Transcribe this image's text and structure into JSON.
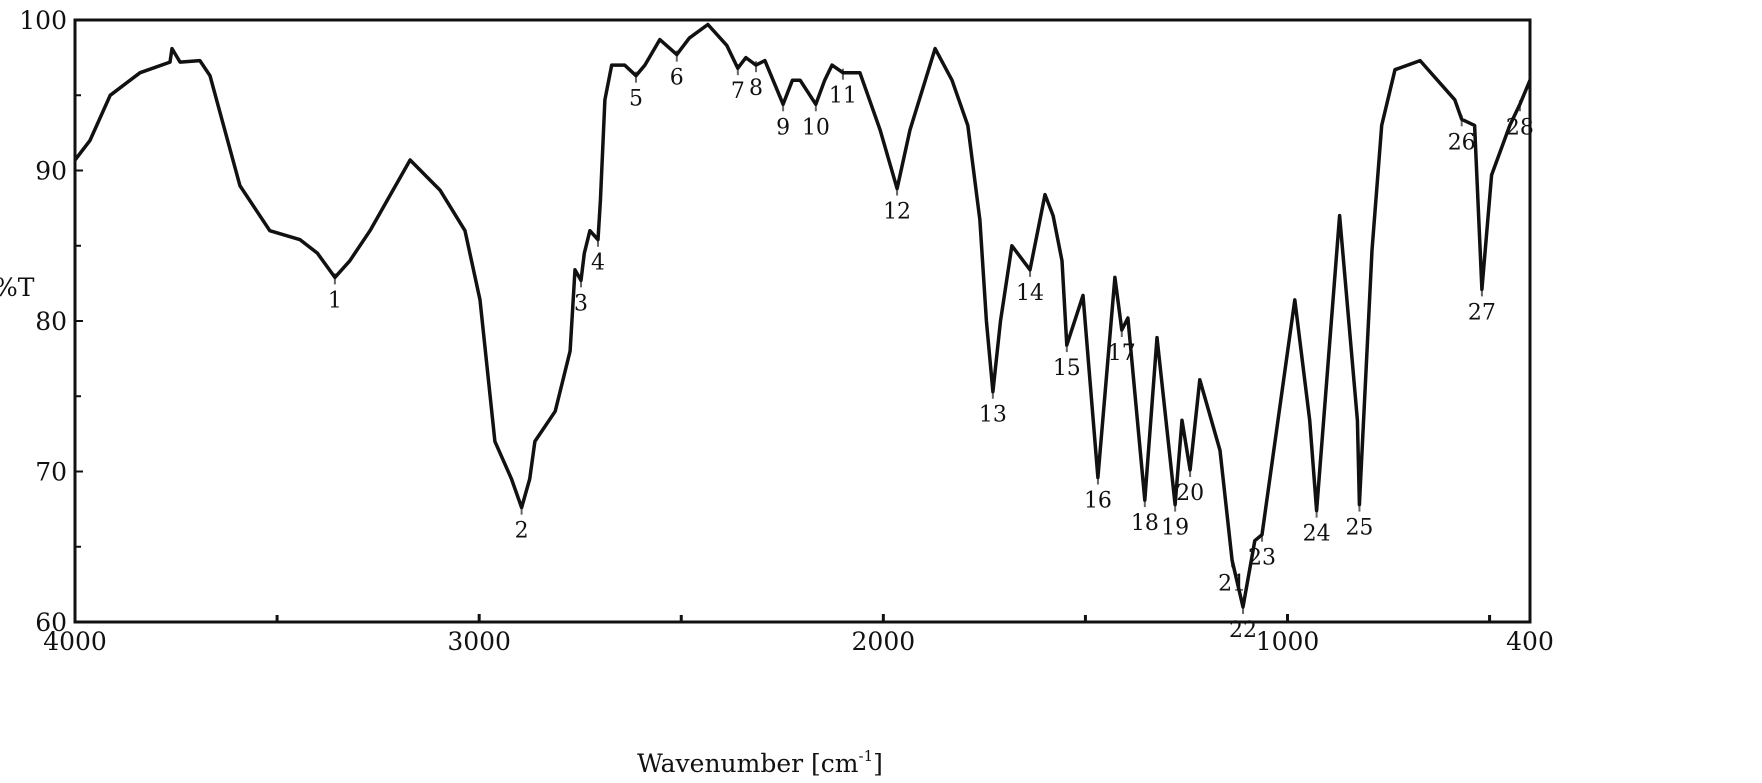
{
  "chart_data": {
    "type": "line",
    "title": "",
    "xlabel": "Wavenumber [cm",
    "xlabel_sup": "-1",
    "xlabel_close": "]",
    "ylabel": "%T",
    "xlim": [
      4000,
      400
    ],
    "ylim": [
      60,
      100
    ],
    "x_reversed": true,
    "grid": false,
    "x_ticks": [
      "4000",
      "3000",
      "2000",
      "1000",
      "400"
    ],
    "x_tick_values": [
      4000,
      3000,
      2000,
      1000,
      400
    ],
    "x_minor_ticks": [
      3500,
      2500,
      1500,
      500
    ],
    "y_ticks": [
      "60",
      "70",
      "80",
      "90",
      "100"
    ],
    "y_tick_values": [
      60,
      70,
      80,
      90,
      100
    ],
    "y_minor_ticks": [
      65,
      75,
      85,
      95
    ],
    "line_color": "#111111",
    "series": [
      {
        "x": [
          4000,
          3963,
          3913,
          3839,
          3765,
          3760,
          3740,
          3691,
          3666,
          3592,
          3518,
          3443,
          3400,
          3357,
          3320,
          3270,
          3171,
          3097,
          3035,
          2998,
          2961,
          2920,
          2895,
          2875,
          2862,
          2812,
          2775,
          2763,
          2748,
          2740,
          2726,
          2706,
          2700,
          2689,
          2672,
          2640,
          2612,
          2590,
          2553,
          2511,
          2480,
          2434,
          2387,
          2360,
          2340,
          2315,
          2293,
          2248,
          2225,
          2206,
          2167,
          2145,
          2127,
          2100,
          2058,
          2008,
          1966,
          1934,
          1872,
          1830,
          1791,
          1761,
          1745,
          1729,
          1710,
          1682,
          1637,
          1600,
          1580,
          1558,
          1546,
          1506,
          1469,
          1427,
          1410,
          1395,
          1353,
          1323,
          1278,
          1261,
          1241,
          1217,
          1167,
          1137,
          1110,
          1081,
          1063,
          982,
          945,
          928,
          871,
          827,
          822,
          791,
          767,
          734,
          672,
          586,
          569,
          537,
          519,
          495,
          450,
          425,
          400
        ],
        "y": [
          90.7,
          92,
          95,
          96.5,
          97.2,
          98.1,
          97.2,
          97.3,
          96.3,
          89,
          86,
          85.4,
          84.5,
          82.9,
          84,
          86,
          90.7,
          88.7,
          86,
          81.4,
          72,
          69.5,
          67.6,
          69.5,
          72,
          74,
          78,
          83.4,
          82.7,
          84.5,
          86,
          85.4,
          88,
          94.7,
          97,
          97,
          96.3,
          97,
          98.7,
          97.7,
          98.8,
          99.7,
          98.3,
          96.8,
          97.5,
          97,
          97.3,
          94.4,
          96,
          96,
          94.4,
          96,
          97,
          96.5,
          96.5,
          92.7,
          88.8,
          92.7,
          98.1,
          96,
          93,
          86.7,
          80,
          75.3,
          80,
          85,
          83.4,
          88.4,
          87,
          84,
          78.4,
          81.7,
          69.6,
          82.9,
          79.4,
          80.2,
          68.1,
          78.9,
          67.8,
          73.4,
          70.1,
          76.1,
          71.4,
          64.1,
          61,
          65.4,
          65.8,
          81.4,
          73.4,
          67.4,
          87,
          73.4,
          67.8,
          84.7,
          93,
          96.7,
          97.3,
          94.7,
          93.4,
          93,
          82.1,
          89.7,
          93,
          94.4,
          96
        ]
      }
    ],
    "peaks": [
      {
        "label": "1",
        "x": 3357,
        "y": 82.9
      },
      {
        "label": "2",
        "x": 2895,
        "y": 67.6
      },
      {
        "label": "3",
        "x": 2748,
        "y": 82.7
      },
      {
        "label": "4",
        "x": 2706,
        "y": 85.4
      },
      {
        "label": "5",
        "x": 2612,
        "y": 96.3
      },
      {
        "label": "6",
        "x": 2511,
        "y": 97.7
      },
      {
        "label": "7",
        "x": 2360,
        "y": 96.8
      },
      {
        "label": "8",
        "x": 2315,
        "y": 97
      },
      {
        "label": "9",
        "x": 2248,
        "y": 94.4
      },
      {
        "label": "10",
        "x": 2167,
        "y": 94.4
      },
      {
        "label": "11",
        "x": 2100,
        "y": 96.5
      },
      {
        "label": "12",
        "x": 1966,
        "y": 88.8
      },
      {
        "label": "13",
        "x": 1729,
        "y": 75.3
      },
      {
        "label": "14",
        "x": 1637,
        "y": 83.4
      },
      {
        "label": "15",
        "x": 1546,
        "y": 78.4
      },
      {
        "label": "16",
        "x": 1469,
        "y": 69.6
      },
      {
        "label": "17",
        "x": 1410,
        "y": 79.4
      },
      {
        "label": "18",
        "x": 1353,
        "y": 68.1
      },
      {
        "label": "19",
        "x": 1278,
        "y": 67.8
      },
      {
        "label": "20",
        "x": 1241,
        "y": 70.1
      },
      {
        "label": "21",
        "x": 1137,
        "y": 64.1
      },
      {
        "label": "22",
        "x": 1110,
        "y": 61
      },
      {
        "label": "23",
        "x": 1063,
        "y": 65.8
      },
      {
        "label": "24",
        "x": 928,
        "y": 67.4
      },
      {
        "label": "25",
        "x": 822,
        "y": 67.8
      },
      {
        "label": "26",
        "x": 569,
        "y": 93.4
      },
      {
        "label": "27",
        "x": 519,
        "y": 82.1
      },
      {
        "label": "28",
        "x": 425,
        "y": 94.4
      }
    ]
  }
}
